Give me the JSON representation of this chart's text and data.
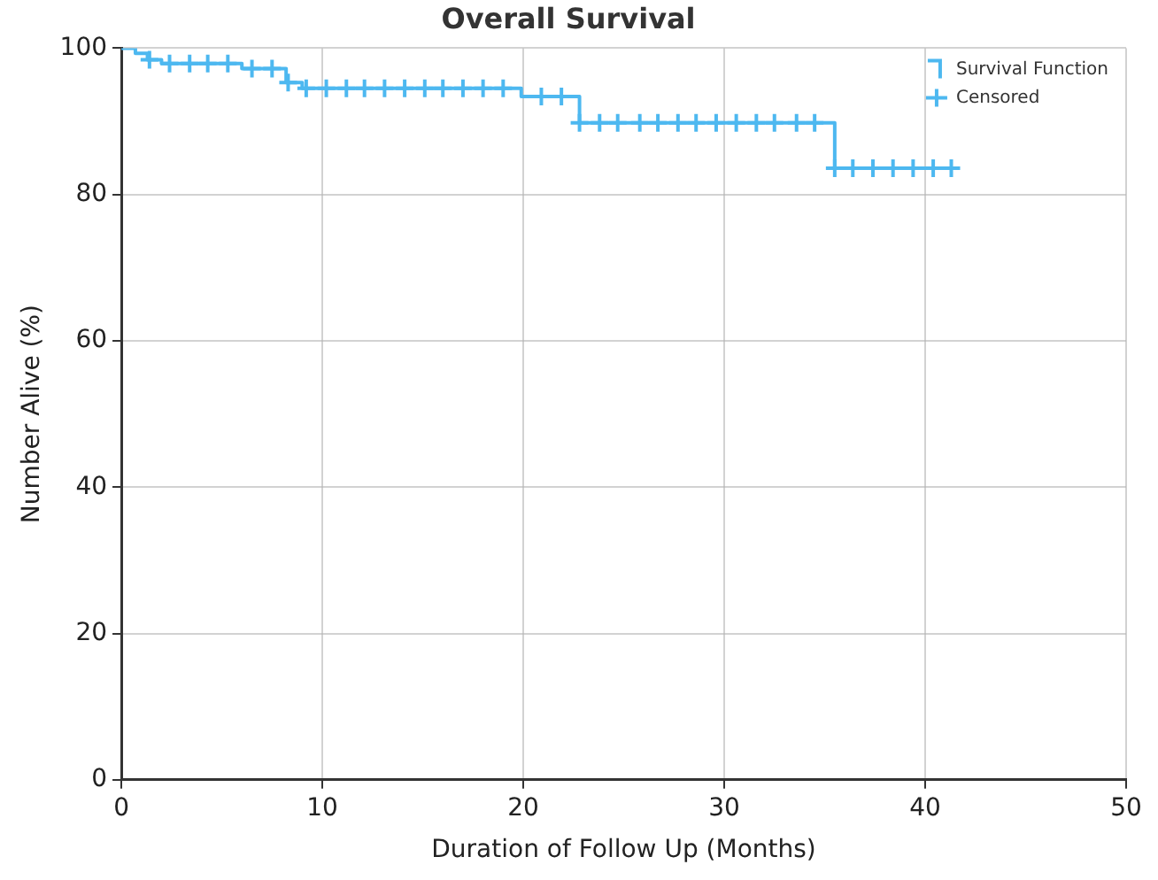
{
  "chart_data": {
    "type": "step",
    "title": "Overall Survival",
    "xlabel": "Duration of Follow Up (Months)",
    "ylabel": "Number Alive (%)",
    "xlim": [
      0,
      50
    ],
    "xticks": [
      0,
      10,
      20,
      30,
      40,
      50
    ],
    "ylim": [
      0,
      100
    ],
    "yticks": [
      0,
      20,
      40,
      60,
      80,
      100
    ],
    "grid": true,
    "legend": "top right",
    "series": [
      {
        "name": "Survival Function",
        "type": "step",
        "color": "#4db8f0",
        "marker": "none",
        "x": [
          0,
          0.7,
          1.3,
          2,
          6,
          8.2,
          9,
          19.9,
          22.8,
          35.5,
          41.3
        ],
        "values": [
          100,
          99.3,
          98.4,
          97.9,
          97.2,
          95.3,
          94.5,
          93.4,
          89.8,
          83.6,
          83.6
        ]
      },
      {
        "name": "Censored",
        "type": "scatter",
        "color": "#4db8f0",
        "marker": "cross",
        "x": [
          1.4,
          2.4,
          3.4,
          4.3,
          5.3,
          6.5,
          7.5,
          8.3,
          9.2,
          10.2,
          11.2,
          12.1,
          13.1,
          14.1,
          15.1,
          16.0,
          17.0,
          18.0,
          19.0,
          20.9,
          21.9,
          22.8,
          23.8,
          24.7,
          25.8,
          26.7,
          27.7,
          28.6,
          29.6,
          30.6,
          31.6,
          32.5,
          33.6,
          34.5,
          35.5,
          36.4,
          37.4,
          38.4,
          39.4,
          40.4,
          41.3
        ],
        "values": [
          98.4,
          97.9,
          97.9,
          97.9,
          97.9,
          97.2,
          97.2,
          95.3,
          94.5,
          94.5,
          94.5,
          94.5,
          94.5,
          94.5,
          94.5,
          94.5,
          94.5,
          94.5,
          94.5,
          93.4,
          93.4,
          89.8,
          89.8,
          89.8,
          89.8,
          89.8,
          89.8,
          89.8,
          89.8,
          89.8,
          89.8,
          89.8,
          89.8,
          89.8,
          83.6,
          83.6,
          83.6,
          83.6,
          83.6,
          83.6,
          83.6
        ]
      }
    ]
  }
}
